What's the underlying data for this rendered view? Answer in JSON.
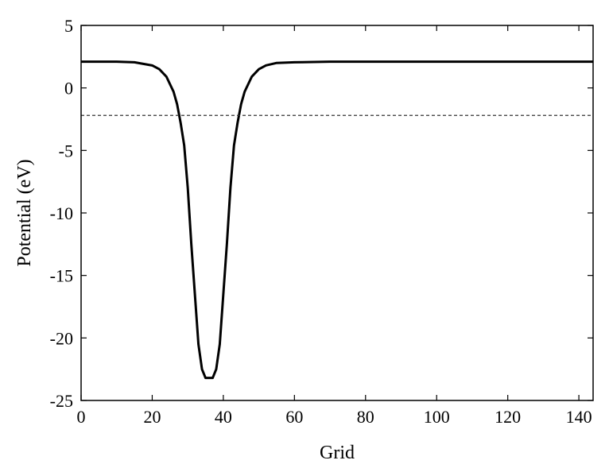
{
  "chart_data": {
    "type": "line",
    "title": "",
    "xlabel": "Grid",
    "ylabel": "Potential (eV)",
    "xlim": [
      0,
      144
    ],
    "ylim": [
      -25,
      5
    ],
    "xticks": [
      0,
      20,
      40,
      60,
      80,
      100,
      120,
      140
    ],
    "yticks": [
      5,
      0,
      -5,
      -10,
      -15,
      -20,
      -25
    ],
    "xtick_labels": [
      "0",
      "20",
      "40",
      "60",
      "80",
      "100",
      "120",
      "140"
    ],
    "ytick_labels": [
      "5",
      "0",
      "-5",
      "-10",
      "-15",
      "-20",
      "-25"
    ],
    "grid": false,
    "legend": "none",
    "series": [
      {
        "style": "solid",
        "color": "#000000",
        "x": [
          0,
          10,
          15,
          20,
          22,
          24,
          26,
          27,
          28,
          29,
          30,
          31,
          32,
          33,
          34,
          35,
          36,
          37,
          38,
          39,
          40,
          41,
          42,
          43,
          44,
          45,
          46,
          48,
          50,
          52,
          55,
          60,
          70,
          144
        ],
        "y": [
          2.1,
          2.1,
          2.05,
          1.8,
          1.5,
          0.9,
          -0.3,
          -1.3,
          -2.8,
          -4.6,
          -8.0,
          -12.5,
          -16.5,
          -20.5,
          -22.5,
          -23.2,
          -23.2,
          -23.2,
          -22.5,
          -20.5,
          -16.5,
          -12.5,
          -8.0,
          -4.6,
          -2.8,
          -1.3,
          -0.3,
          0.9,
          1.5,
          1.8,
          2.0,
          2.05,
          2.1,
          2.1
        ]
      },
      {
        "style": "dashed",
        "color": "#333333",
        "x": [
          0,
          144
        ],
        "y": [
          -2.2,
          -2.2
        ]
      }
    ]
  }
}
